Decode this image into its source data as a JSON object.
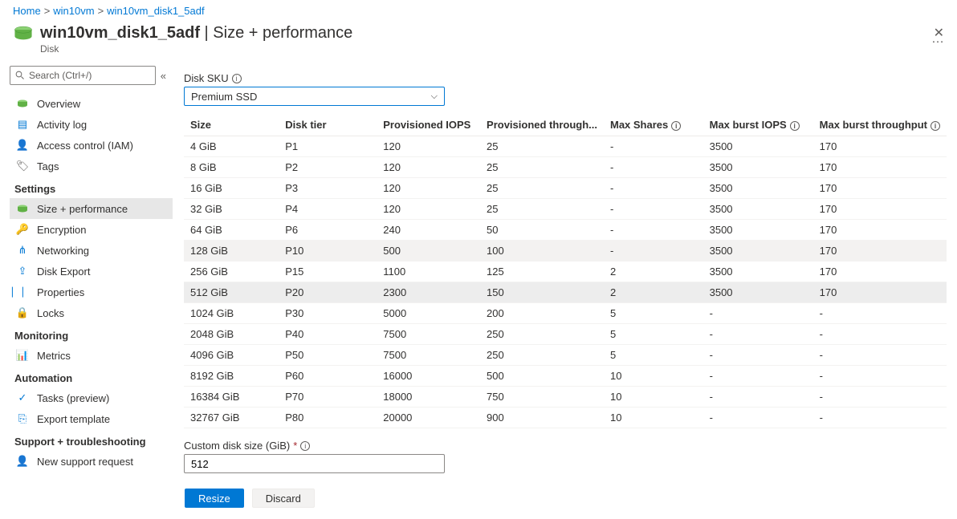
{
  "breadcrumb": {
    "items": [
      "Home",
      "win10vm",
      "win10vm_disk1_5adf"
    ]
  },
  "header": {
    "icon": "disk-icon",
    "title": "win10vm_disk1_5adf",
    "subtitle_suffix": " | Size + performance",
    "resource_type": "Disk",
    "ellipsis": "…",
    "close": "✕"
  },
  "sidebar": {
    "search_placeholder": "Search (Ctrl+/)",
    "collapse_glyph": "«",
    "top_items": [
      {
        "icon": "disk-icon",
        "label": "Overview"
      },
      {
        "icon": "activity-log-icon",
        "label": "Activity log"
      },
      {
        "icon": "access-control-icon",
        "label": "Access control (IAM)"
      },
      {
        "icon": "tags-icon",
        "label": "Tags"
      }
    ],
    "sections": [
      {
        "title": "Settings",
        "items": [
          {
            "icon": "disk-green-icon",
            "label": "Size + performance",
            "active": true
          },
          {
            "icon": "encryption-icon",
            "label": "Encryption"
          },
          {
            "icon": "networking-icon",
            "label": "Networking"
          },
          {
            "icon": "export-icon",
            "label": "Disk Export"
          },
          {
            "icon": "properties-icon",
            "label": "Properties"
          },
          {
            "icon": "lock-icon",
            "label": "Locks"
          }
        ]
      },
      {
        "title": "Monitoring",
        "items": [
          {
            "icon": "metrics-icon",
            "label": "Metrics"
          }
        ]
      },
      {
        "title": "Automation",
        "items": [
          {
            "icon": "tasks-icon",
            "label": "Tasks (preview)"
          },
          {
            "icon": "template-icon",
            "label": "Export template"
          }
        ]
      },
      {
        "title": "Support + troubleshooting",
        "items": [
          {
            "icon": "support-icon",
            "label": "New support request"
          }
        ]
      }
    ]
  },
  "main": {
    "sku_label": "Disk SKU",
    "sku_value": "Premium SSD",
    "table": {
      "columns": [
        "Size",
        "Disk tier",
        "Provisioned IOPS",
        "Provisioned through...",
        "Max Shares",
        "Max burst IOPS",
        "Max burst throughput"
      ],
      "info_badge_cols": [
        4,
        5,
        6
      ],
      "rows": [
        {
          "cells": [
            "4 GiB",
            "P1",
            "120",
            "25",
            "-",
            "3500",
            "170"
          ]
        },
        {
          "cells": [
            "8 GiB",
            "P2",
            "120",
            "25",
            "-",
            "3500",
            "170"
          ]
        },
        {
          "cells": [
            "16 GiB",
            "P3",
            "120",
            "25",
            "-",
            "3500",
            "170"
          ]
        },
        {
          "cells": [
            "32 GiB",
            "P4",
            "120",
            "25",
            "-",
            "3500",
            "170"
          ]
        },
        {
          "cells": [
            "64 GiB",
            "P6",
            "240",
            "50",
            "-",
            "3500",
            "170"
          ]
        },
        {
          "cells": [
            "128 GiB",
            "P10",
            "500",
            "100",
            "-",
            "3500",
            "170"
          ],
          "highlight": true
        },
        {
          "cells": [
            "256 GiB",
            "P15",
            "1100",
            "125",
            "2",
            "3500",
            "170"
          ]
        },
        {
          "cells": [
            "512 GiB",
            "P20",
            "2300",
            "150",
            "2",
            "3500",
            "170"
          ],
          "selected": true
        },
        {
          "cells": [
            "1024 GiB",
            "P30",
            "5000",
            "200",
            "5",
            "-",
            "-"
          ]
        },
        {
          "cells": [
            "2048 GiB",
            "P40",
            "7500",
            "250",
            "5",
            "-",
            "-"
          ]
        },
        {
          "cells": [
            "4096 GiB",
            "P50",
            "7500",
            "250",
            "5",
            "-",
            "-"
          ]
        },
        {
          "cells": [
            "8192 GiB",
            "P60",
            "16000",
            "500",
            "10",
            "-",
            "-"
          ]
        },
        {
          "cells": [
            "16384 GiB",
            "P70",
            "18000",
            "750",
            "10",
            "-",
            "-"
          ]
        },
        {
          "cells": [
            "32767 GiB",
            "P80",
            "20000",
            "900",
            "10",
            "-",
            "-"
          ]
        }
      ],
      "col_widths": [
        "140px",
        "140px",
        "130px",
        "130px",
        "130px",
        "140px",
        "150px"
      ]
    },
    "custom_label": "Custom disk size (GiB)",
    "custom_value": "512",
    "footer": {
      "primary": "Resize",
      "secondary": "Discard"
    }
  },
  "colors": {
    "link": "#0078d4",
    "text": "#323130",
    "muted": "#605e5c",
    "row_hl": "#f3f2f1",
    "row_sel": "#ededed"
  },
  "icons": {
    "disk-icon": {
      "type": "svg-disk",
      "color1": "#61b146",
      "color2": "#3a8f2a"
    },
    "activity-log-icon": {
      "glyph": "▤",
      "color": "#0078d4"
    },
    "access-control-icon": {
      "glyph": "👤",
      "color": "#0078d4"
    },
    "tags-icon": {
      "glyph": "🏷",
      "color": "#605e5c"
    },
    "disk-green-icon": {
      "type": "svg-disk-small",
      "color": "#61b146"
    },
    "encryption-icon": {
      "glyph": "🔑",
      "color": "#f2c811"
    },
    "networking-icon": {
      "glyph": "⋔",
      "color": "#0078d4"
    },
    "export-icon": {
      "glyph": "⇪",
      "color": "#0078d4"
    },
    "properties-icon": {
      "glyph": "⎸⎸",
      "color": "#0078d4"
    },
    "lock-icon": {
      "glyph": "🔒",
      "color": "#0078d4"
    },
    "metrics-icon": {
      "glyph": "📊",
      "color": "#0078d4"
    },
    "tasks-icon": {
      "glyph": "✓",
      "color": "#0078d4"
    },
    "template-icon": {
      "glyph": "⎘",
      "color": "#0078d4"
    },
    "support-icon": {
      "glyph": "👤",
      "color": "#0078d4"
    }
  }
}
